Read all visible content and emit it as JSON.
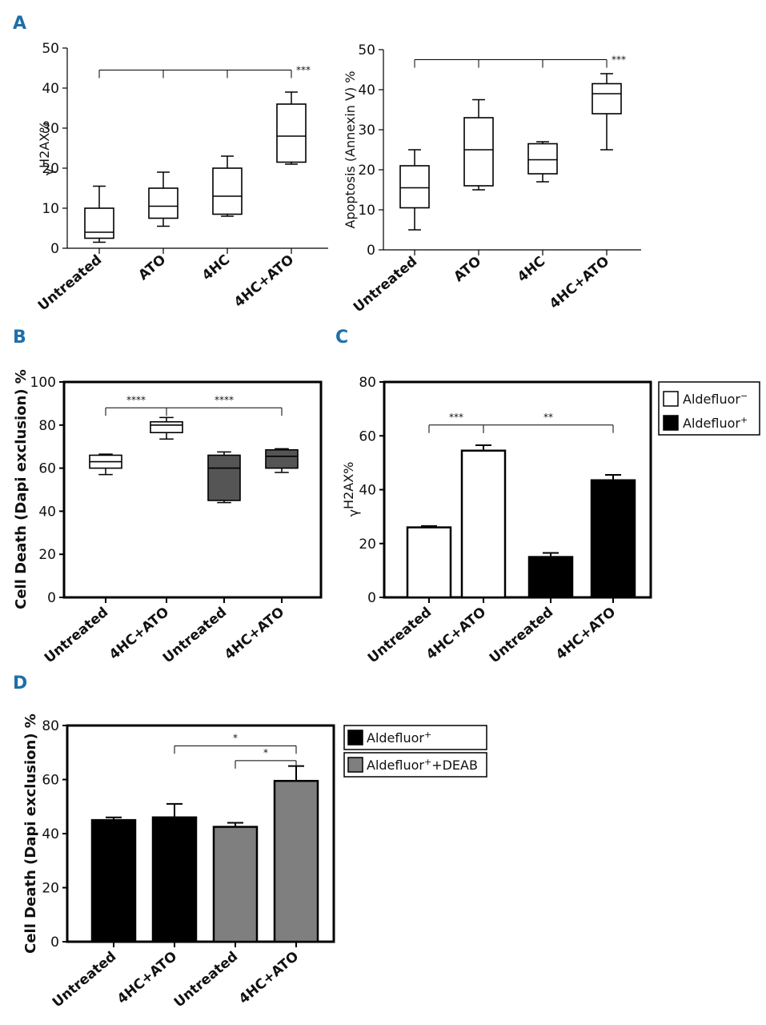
{
  "figure": {
    "panel_labels": [
      "A",
      "B",
      "C",
      "D"
    ]
  },
  "chart_data": [
    {
      "id": "A1",
      "type": "box",
      "panel": "A",
      "title": "",
      "ylabel": "γH2AX%",
      "ylabel_prefix": "γ",
      "ylabel_main": "H2AX%",
      "categories": [
        "Untreated",
        "ATO",
        "4HC",
        "4HC+ATO"
      ],
      "yticks": [
        0,
        10,
        20,
        30,
        40,
        50
      ],
      "ylim": [
        0,
        50
      ],
      "boxes": [
        {
          "min": 1.5,
          "q1": 2.5,
          "median": 4,
          "q3": 10,
          "max": 15.5
        },
        {
          "min": 5.5,
          "q1": 7.5,
          "median": 10.5,
          "q3": 15,
          "max": 19
        },
        {
          "min": 8,
          "q1": 8.5,
          "median": 13,
          "q3": 20,
          "max": 23
        },
        {
          "min": 21,
          "q1": 21.5,
          "median": 28,
          "q3": 36,
          "max": 39
        }
      ],
      "colors": [
        "#ffffff",
        "#ffffff",
        "#ffffff",
        "#ffffff"
      ],
      "significance": [
        {
          "from": 0,
          "to": 3,
          "label": "***",
          "level": 44.5,
          "multi": true
        }
      ]
    },
    {
      "id": "A2",
      "type": "box",
      "panel": "A",
      "title": "",
      "ylabel": "Apoptosis (Annexin V) %",
      "categories": [
        "Untreated",
        "ATO",
        "4HC",
        "4HC+ATO"
      ],
      "yticks": [
        0,
        10,
        20,
        30,
        40,
        50
      ],
      "ylim": [
        0,
        50
      ],
      "boxes": [
        {
          "min": 5,
          "q1": 10.5,
          "median": 15.5,
          "q3": 21,
          "max": 25
        },
        {
          "min": 15,
          "q1": 16,
          "median": 25,
          "q3": 33,
          "max": 37.5
        },
        {
          "min": 17,
          "q1": 19,
          "median": 22.5,
          "q3": 26.5,
          "max": 27
        },
        {
          "min": 25,
          "q1": 34,
          "median": 39,
          "q3": 41.5,
          "max": 44
        }
      ],
      "colors": [
        "#ffffff",
        "#ffffff",
        "#ffffff",
        "#ffffff"
      ],
      "significance": [
        {
          "from": 0,
          "to": 3,
          "label": "***",
          "level": 47.5,
          "multi": true
        }
      ]
    },
    {
      "id": "B",
      "type": "box",
      "panel": "B",
      "title": "",
      "ylabel": "Cell Death (Dapi exclusion) %",
      "categories": [
        "Untreated",
        "4HC+ATO",
        "Untreated",
        "4HC+ATO"
      ],
      "yticks": [
        0,
        20,
        40,
        60,
        80,
        100
      ],
      "ylim": [
        0,
        100
      ],
      "boxes": [
        {
          "min": 57,
          "q1": 60,
          "median": 63,
          "q3": 66,
          "max": 66.5
        },
        {
          "min": 73.5,
          "q1": 76.5,
          "median": 80,
          "q3": 81.5,
          "max": 83.5
        },
        {
          "min": 44,
          "q1": 45,
          "median": 60,
          "q3": 66,
          "max": 67.5
        },
        {
          "min": 58,
          "q1": 60,
          "median": 65.5,
          "q3": 68.5,
          "max": 69
        }
      ],
      "colors": [
        "#ffffff",
        "#ffffff",
        "#555555",
        "#555555"
      ],
      "significance": [
        {
          "from": 0,
          "to": 1,
          "label": "****",
          "level": 88,
          "multi": false
        },
        {
          "from": 1,
          "to": 3,
          "label": "****",
          "level": 88,
          "multi": false
        }
      ]
    },
    {
      "id": "C",
      "type": "bar",
      "panel": "C",
      "title": "",
      "ylabel": "γH2AX%",
      "ylabel_prefix": "γ",
      "ylabel_main": "H2AX%",
      "categories": [
        "Untreated",
        "4HC+ATO",
        "Untreated",
        "4HC+ATO"
      ],
      "values": [
        26,
        54.5,
        15,
        43.5
      ],
      "errors": [
        0.5,
        2,
        1.5,
        2
      ],
      "yticks": [
        0,
        20,
        40,
        60,
        80
      ],
      "ylim": [
        0,
        80
      ],
      "colors": [
        "#ffffff",
        "#ffffff",
        "#000000",
        "#000000"
      ],
      "legend": {
        "position": "top-right",
        "entries": [
          {
            "name": "Aldefluor",
            "sup": "−",
            "color": "#ffffff"
          },
          {
            "name": "Aldefluor",
            "sup": "+",
            "color": "#000000"
          }
        ]
      },
      "significance": [
        {
          "from": 0,
          "to": 1,
          "label": "***",
          "level": 64,
          "multi": false
        },
        {
          "from": 1,
          "to": 3,
          "label": "**",
          "level": 64,
          "multi": false
        }
      ]
    },
    {
      "id": "D",
      "type": "bar",
      "panel": "D",
      "title": "",
      "ylabel": "Cell Death (Dapi exclusion) %",
      "categories": [
        "Untreated",
        "4HC+ATO",
        "Untreated",
        "4HC+ATO"
      ],
      "values": [
        45,
        46,
        42.5,
        59.5
      ],
      "errors": [
        1,
        5,
        1.5,
        5.5
      ],
      "yticks": [
        0,
        20,
        40,
        60,
        80
      ],
      "ylim": [
        0,
        80
      ],
      "colors": [
        "#000000",
        "#000000",
        "#7f7f7f",
        "#7f7f7f"
      ],
      "legend": {
        "position": "outside-right",
        "entries": [
          {
            "name": "Aldefluor",
            "sup": "+",
            "suffix": "",
            "color": "#000000"
          },
          {
            "name": "Aldefluor",
            "sup": "+",
            "suffix": "+DEAB",
            "color": "#7f7f7f"
          }
        ]
      },
      "significance": [
        {
          "from": 1,
          "to": 3,
          "label": "*",
          "level": 72.5,
          "multi": false
        },
        {
          "from": 2,
          "to": 3,
          "label": "*",
          "level": 67,
          "multi": false
        }
      ]
    }
  ]
}
